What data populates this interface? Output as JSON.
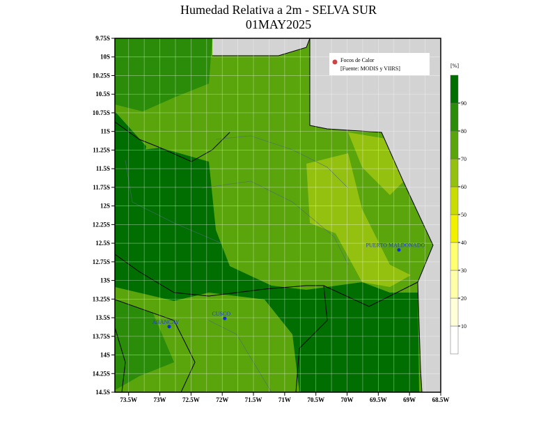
{
  "title": "Humedad Relativa a 2m - SELVA SUR",
  "subtitle": "01MAY2025",
  "map": {
    "xlim": [
      -73.72,
      -68.5
    ],
    "ylim": [
      -14.5,
      -9.75
    ],
    "xticks": [
      {
        "value": -73.5,
        "label": "73.5W"
      },
      {
        "value": -73,
        "label": "73W"
      },
      {
        "value": -72.5,
        "label": "72.5W"
      },
      {
        "value": -72,
        "label": "72W"
      },
      {
        "value": -71.5,
        "label": "71.5W"
      },
      {
        "value": -71,
        "label": "71W"
      },
      {
        "value": -70.5,
        "label": "70.5W"
      },
      {
        "value": -70,
        "label": "70W"
      },
      {
        "value": -69.5,
        "label": "69.5W"
      },
      {
        "value": -69,
        "label": "69W"
      },
      {
        "value": -68.5,
        "label": "68.5W"
      }
    ],
    "yticks": [
      {
        "value": -9.75,
        "label": "9.75S"
      },
      {
        "value": -10,
        "label": "10S"
      },
      {
        "value": -10.25,
        "label": "10.25S"
      },
      {
        "value": -10.5,
        "label": "10.5S"
      },
      {
        "value": -10.75,
        "label": "10.75S"
      },
      {
        "value": -11,
        "label": "11S"
      },
      {
        "value": -11.25,
        "label": "11.25S"
      },
      {
        "value": -11.5,
        "label": "11.5S"
      },
      {
        "value": -11.75,
        "label": "11.75S"
      },
      {
        "value": -12,
        "label": "12S"
      },
      {
        "value": -12.25,
        "label": "12.25S"
      },
      {
        "value": -12.5,
        "label": "12.5S"
      },
      {
        "value": -12.75,
        "label": "12.75S"
      },
      {
        "value": -13,
        "label": "13S"
      },
      {
        "value": -13.25,
        "label": "13.25S"
      },
      {
        "value": -13.5,
        "label": "13.5S"
      },
      {
        "value": -13.75,
        "label": "13.75S"
      },
      {
        "value": -14,
        "label": "14S"
      },
      {
        "value": -14.25,
        "label": "14.25S"
      },
      {
        "value": -14.5,
        "label": "14.5S"
      }
    ],
    "places": [
      {
        "name": "PUERTO MALDONADO",
        "lon": -69.17,
        "lat": -12.59
      },
      {
        "name": "CUSCO",
        "lon": -71.96,
        "lat": -13.51
      },
      {
        "name": "ABANCAY",
        "lon": -72.85,
        "lat": -13.62
      }
    ]
  },
  "legend": {
    "items": [
      "Focos de Calor",
      "[Fuente: MODIS y VIIRS]"
    ]
  },
  "colorbar": {
    "unit": "[%]",
    "ylim": [
      0,
      100
    ],
    "ticks": [
      10,
      20,
      30,
      40,
      50,
      60,
      70,
      80,
      90
    ],
    "colors": [
      "#ffffff",
      "#ffffd8",
      "#ffffa8",
      "#ffff70",
      "#f0f000",
      "#c8dc00",
      "#94c010",
      "#5aa40c",
      "#2a8c08",
      "#006e00"
    ]
  }
}
